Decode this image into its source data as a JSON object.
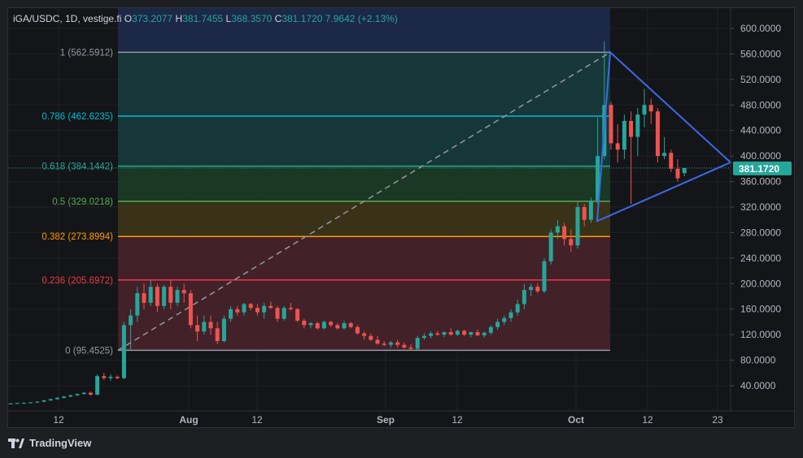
{
  "legend": {
    "symbol": "iGA/USDC, 1D, vestige.fi",
    "open_label": "O",
    "open": "373.2077",
    "high_label": "H",
    "high": "381.7455",
    "low_label": "L",
    "low": "368.3570",
    "close_label": "C",
    "close": "381.1720",
    "change": "7.9642 (+2.13%)"
  },
  "brand": {
    "name": "TradingView"
  },
  "colors": {
    "up": "#26a69a",
    "down": "#ef5350",
    "background": "#141518",
    "grid": "#1f2125",
    "axis_text": "#b2b5be",
    "triangle": "#3b6ae8",
    "last_price_bg": "#26a69a"
  },
  "price_axis": {
    "ticks": [
      "600.0000",
      "560.0000",
      "520.0000",
      "480.0000",
      "440.0000",
      "400.0000",
      "360.0000",
      "320.0000",
      "280.0000",
      "240.0000",
      "200.0000",
      "160.0000",
      "120.0000",
      "80.0000",
      "40.0000"
    ],
    "last_price": "381.1720"
  },
  "time_axis": {
    "ticks": [
      "12",
      "Aug",
      "12",
      "Sep",
      "12",
      "Oct",
      "12",
      "23"
    ]
  },
  "fib_levels": [
    {
      "label": "1 (562.5912)",
      "price": 562.5912,
      "color": "#9598a1",
      "fill": "#2b2c30"
    },
    {
      "label": "0.786 (462.6235)",
      "price": 462.6235,
      "color": "#00bcd4",
      "fill": "#17393b"
    },
    {
      "label": "0.618 (384.1442)",
      "price": 384.1442,
      "color": "#26a69a",
      "fill": "#16393a"
    },
    {
      "label": "0.5 (329.0218)",
      "price": 329.0218,
      "color": "#4caf50",
      "fill": "#1b3a26"
    },
    {
      "label": "0.382 (273.8994)",
      "price": 273.8994,
      "color": "#ff9800",
      "fill": "#3b3318"
    },
    {
      "label": "0.236 (205.6972)",
      "price": 205.6972,
      "color": "#f23645",
      "fill": "#45222a"
    },
    {
      "label": "0 (95.4525)",
      "price": 95.4525,
      "color": "#9598a1",
      "fill": "#45222a"
    }
  ],
  "chart_data": {
    "type": "candlestick",
    "title": "iGA/USDC, 1D, vestige.fi",
    "ylim": [
      0,
      620
    ],
    "grid": true,
    "candles": [
      {
        "o": 12,
        "h": 13,
        "l": 11,
        "c": 12
      },
      {
        "o": 12,
        "h": 13,
        "l": 11,
        "c": 13
      },
      {
        "o": 13,
        "h": 14,
        "l": 12,
        "c": 13
      },
      {
        "o": 13,
        "h": 14,
        "l": 12,
        "c": 14
      },
      {
        "o": 14,
        "h": 16,
        "l": 13,
        "c": 15
      },
      {
        "o": 15,
        "h": 18,
        "l": 14,
        "c": 17
      },
      {
        "o": 17,
        "h": 20,
        "l": 16,
        "c": 19
      },
      {
        "o": 19,
        "h": 22,
        "l": 18,
        "c": 21
      },
      {
        "o": 21,
        "h": 24,
        "l": 20,
        "c": 23
      },
      {
        "o": 23,
        "h": 26,
        "l": 22,
        "c": 25
      },
      {
        "o": 25,
        "h": 28,
        "l": 24,
        "c": 27
      },
      {
        "o": 27,
        "h": 30,
        "l": 26,
        "c": 29
      },
      {
        "o": 29,
        "h": 31,
        "l": 24,
        "c": 26
      },
      {
        "o": 26,
        "h": 58,
        "l": 25,
        "c": 55
      },
      {
        "o": 55,
        "h": 60,
        "l": 49,
        "c": 52
      },
      {
        "o": 52,
        "h": 58,
        "l": 48,
        "c": 54
      },
      {
        "o": 54,
        "h": 56,
        "l": 50,
        "c": 52
      },
      {
        "o": 52,
        "h": 140,
        "l": 50,
        "c": 135
      },
      {
        "o": 135,
        "h": 160,
        "l": 95,
        "c": 150
      },
      {
        "o": 150,
        "h": 195,
        "l": 140,
        "c": 185
      },
      {
        "o": 185,
        "h": 200,
        "l": 160,
        "c": 170
      },
      {
        "o": 170,
        "h": 205,
        "l": 165,
        "c": 195
      },
      {
        "o": 195,
        "h": 200,
        "l": 155,
        "c": 165
      },
      {
        "o": 165,
        "h": 198,
        "l": 160,
        "c": 195
      },
      {
        "o": 195,
        "h": 205,
        "l": 160,
        "c": 170
      },
      {
        "o": 170,
        "h": 195,
        "l": 165,
        "c": 190
      },
      {
        "o": 190,
        "h": 200,
        "l": 170,
        "c": 185
      },
      {
        "o": 185,
        "h": 190,
        "l": 130,
        "c": 135
      },
      {
        "o": 135,
        "h": 150,
        "l": 110,
        "c": 125
      },
      {
        "o": 125,
        "h": 150,
        "l": 120,
        "c": 140
      },
      {
        "o": 140,
        "h": 150,
        "l": 120,
        "c": 130
      },
      {
        "o": 130,
        "h": 140,
        "l": 105,
        "c": 110
      },
      {
        "o": 110,
        "h": 150,
        "l": 108,
        "c": 145
      },
      {
        "o": 145,
        "h": 165,
        "l": 140,
        "c": 160
      },
      {
        "o": 160,
        "h": 165,
        "l": 150,
        "c": 155
      },
      {
        "o": 155,
        "h": 170,
        "l": 150,
        "c": 168
      },
      {
        "o": 168,
        "h": 170,
        "l": 158,
        "c": 162
      },
      {
        "o": 162,
        "h": 168,
        "l": 150,
        "c": 155
      },
      {
        "o": 155,
        "h": 170,
        "l": 145,
        "c": 165
      },
      {
        "o": 165,
        "h": 172,
        "l": 160,
        "c": 162
      },
      {
        "o": 162,
        "h": 165,
        "l": 140,
        "c": 145
      },
      {
        "o": 145,
        "h": 165,
        "l": 142,
        "c": 162
      },
      {
        "o": 162,
        "h": 170,
        "l": 158,
        "c": 160
      },
      {
        "o": 160,
        "h": 162,
        "l": 140,
        "c": 142
      },
      {
        "o": 142,
        "h": 145,
        "l": 130,
        "c": 135
      },
      {
        "o": 135,
        "h": 140,
        "l": 130,
        "c": 138
      },
      {
        "o": 138,
        "h": 140,
        "l": 128,
        "c": 130
      },
      {
        "o": 130,
        "h": 142,
        "l": 128,
        "c": 140
      },
      {
        "o": 140,
        "h": 142,
        "l": 132,
        "c": 135
      },
      {
        "o": 135,
        "h": 138,
        "l": 128,
        "c": 130
      },
      {
        "o": 130,
        "h": 142,
        "l": 128,
        "c": 138
      },
      {
        "o": 138,
        "h": 140,
        "l": 130,
        "c": 132
      },
      {
        "o": 132,
        "h": 135,
        "l": 120,
        "c": 122
      },
      {
        "o": 122,
        "h": 125,
        "l": 112,
        "c": 118
      },
      {
        "o": 118,
        "h": 122,
        "l": 110,
        "c": 112
      },
      {
        "o": 112,
        "h": 118,
        "l": 104,
        "c": 106
      },
      {
        "o": 106,
        "h": 110,
        "l": 102,
        "c": 104
      },
      {
        "o": 104,
        "h": 110,
        "l": 100,
        "c": 108
      },
      {
        "o": 108,
        "h": 112,
        "l": 100,
        "c": 104
      },
      {
        "o": 104,
        "h": 108,
        "l": 98,
        "c": 100
      },
      {
        "o": 100,
        "h": 105,
        "l": 96,
        "c": 98
      },
      {
        "o": 98,
        "h": 118,
        "l": 96,
        "c": 115
      },
      {
        "o": 115,
        "h": 122,
        "l": 112,
        "c": 118
      },
      {
        "o": 118,
        "h": 125,
        "l": 114,
        "c": 122
      },
      {
        "o": 122,
        "h": 126,
        "l": 118,
        "c": 120
      },
      {
        "o": 120,
        "h": 125,
        "l": 116,
        "c": 124
      },
      {
        "o": 124,
        "h": 130,
        "l": 118,
        "c": 120
      },
      {
        "o": 120,
        "h": 128,
        "l": 118,
        "c": 126
      },
      {
        "o": 126,
        "h": 128,
        "l": 118,
        "c": 120
      },
      {
        "o": 120,
        "h": 125,
        "l": 116,
        "c": 124
      },
      {
        "o": 124,
        "h": 128,
        "l": 118,
        "c": 119
      },
      {
        "o": 119,
        "h": 125,
        "l": 115,
        "c": 123
      },
      {
        "o": 123,
        "h": 135,
        "l": 120,
        "c": 132
      },
      {
        "o": 132,
        "h": 145,
        "l": 128,
        "c": 140
      },
      {
        "o": 140,
        "h": 150,
        "l": 135,
        "c": 146
      },
      {
        "o": 146,
        "h": 160,
        "l": 140,
        "c": 155
      },
      {
        "o": 155,
        "h": 175,
        "l": 150,
        "c": 168
      },
      {
        "o": 168,
        "h": 200,
        "l": 160,
        "c": 190
      },
      {
        "o": 190,
        "h": 200,
        "l": 180,
        "c": 195
      },
      {
        "o": 195,
        "h": 200,
        "l": 185,
        "c": 188
      },
      {
        "o": 188,
        "h": 240,
        "l": 185,
        "c": 235
      },
      {
        "o": 235,
        "h": 285,
        "l": 230,
        "c": 280
      },
      {
        "o": 280,
        "h": 300,
        "l": 270,
        "c": 290
      },
      {
        "o": 290,
        "h": 295,
        "l": 260,
        "c": 270
      },
      {
        "o": 270,
        "h": 285,
        "l": 250,
        "c": 260
      },
      {
        "o": 260,
        "h": 330,
        "l": 255,
        "c": 320
      },
      {
        "o": 320,
        "h": 325,
        "l": 290,
        "c": 300
      },
      {
        "o": 300,
        "h": 335,
        "l": 295,
        "c": 330
      },
      {
        "o": 330,
        "h": 460,
        "l": 325,
        "c": 400
      },
      {
        "o": 400,
        "h": 580,
        "l": 395,
        "c": 480
      },
      {
        "o": 480,
        "h": 485,
        "l": 410,
        "c": 420
      },
      {
        "o": 420,
        "h": 450,
        "l": 390,
        "c": 410
      },
      {
        "o": 410,
        "h": 465,
        "l": 395,
        "c": 455
      },
      {
        "o": 455,
        "h": 470,
        "l": 325,
        "c": 430
      },
      {
        "o": 430,
        "h": 475,
        "l": 400,
        "c": 465
      },
      {
        "o": 465,
        "h": 505,
        "l": 445,
        "c": 480
      },
      {
        "o": 480,
        "h": 490,
        "l": 450,
        "c": 470
      },
      {
        "o": 470,
        "h": 475,
        "l": 390,
        "c": 400
      },
      {
        "o": 400,
        "h": 430,
        "l": 395,
        "c": 405
      },
      {
        "o": 405,
        "h": 410,
        "l": 375,
        "c": 380
      },
      {
        "o": 380,
        "h": 395,
        "l": 360,
        "c": 365
      },
      {
        "o": 373.2077,
        "h": 381.7455,
        "l": 368.357,
        "c": 381.172
      }
    ]
  }
}
